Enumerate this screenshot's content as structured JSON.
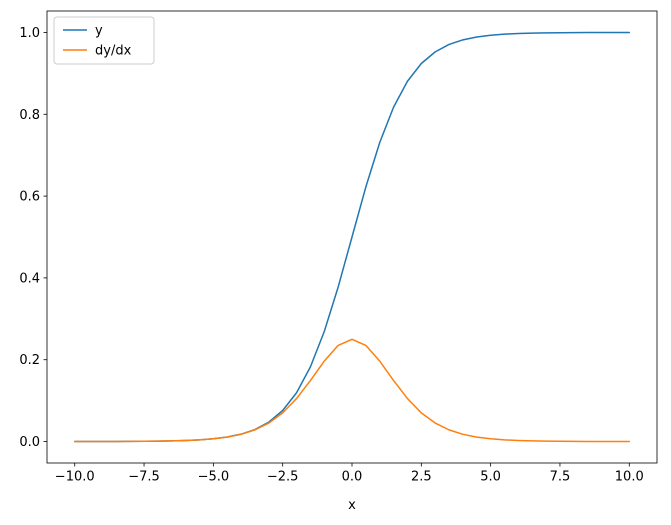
{
  "chart_data": {
    "type": "line",
    "title": "",
    "xlabel": "x",
    "ylabel": "",
    "grid": false,
    "xlim": [
      -11,
      11
    ],
    "ylim": [
      -0.0525,
      1.0525
    ],
    "x_ticks": [
      -10.0,
      -7.5,
      -5.0,
      -2.5,
      0.0,
      2.5,
      5.0,
      7.5,
      10.0
    ],
    "x_tick_labels": [
      "−10.0",
      "−7.5",
      "−5.0",
      "−2.5",
      "0.0",
      "2.5",
      "5.0",
      "7.5",
      "10.0"
    ],
    "y_ticks": [
      0.0,
      0.2,
      0.4,
      0.6,
      0.8,
      1.0
    ],
    "y_tick_labels": [
      "0.0",
      "0.2",
      "0.4",
      "0.6",
      "0.8",
      "1.0"
    ],
    "legend": {
      "position": "upper left",
      "entries": [
        "y",
        "dy/dx"
      ]
    },
    "x": [
      -10,
      -9.5,
      -9,
      -8.5,
      -8,
      -7.5,
      -7,
      -6.5,
      -6,
      -5.5,
      -5,
      -4.5,
      -4,
      -3.5,
      -3,
      -2.5,
      -2,
      -1.5,
      -1,
      -0.5,
      0,
      0.5,
      1,
      1.5,
      2,
      2.5,
      3,
      3.5,
      4,
      4.5,
      5,
      5.5,
      6,
      6.5,
      7,
      7.5,
      8,
      8.5,
      9,
      9.5,
      10
    ],
    "series": [
      {
        "name": "y",
        "color": "#1f77b4",
        "values": [
          5e-05,
          7e-05,
          0.00012,
          0.0002,
          0.00034,
          0.00055,
          0.00091,
          0.0015,
          0.00247,
          0.00407,
          0.00669,
          0.01099,
          0.01799,
          0.02931,
          0.04743,
          0.07586,
          0.1192,
          0.18243,
          0.26894,
          0.37754,
          0.5,
          0.62246,
          0.73106,
          0.81757,
          0.8808,
          0.92414,
          0.95257,
          0.97069,
          0.98201,
          0.98901,
          0.99331,
          0.99593,
          0.99753,
          0.9985,
          0.99909,
          0.99945,
          0.99966,
          0.9998,
          0.99988,
          0.99993,
          0.99995
        ]
      },
      {
        "name": "dy/dx",
        "color": "#ff7f0e",
        "values": [
          5e-05,
          7e-05,
          0.00012,
          0.0002,
          0.00034,
          0.00055,
          0.00091,
          0.0015,
          0.00246,
          0.00405,
          0.00665,
          0.01087,
          0.01766,
          0.02845,
          0.04518,
          0.0701,
          0.10499,
          0.14915,
          0.19661,
          0.235,
          0.25,
          0.235,
          0.19661,
          0.14915,
          0.10499,
          0.0701,
          0.04518,
          0.02845,
          0.01766,
          0.01087,
          0.00665,
          0.00405,
          0.00246,
          0.0015,
          0.00091,
          0.00055,
          0.00034,
          0.0002,
          0.00012,
          7e-05,
          5e-05
        ]
      }
    ]
  },
  "frame": {
    "spine_color": "#000000",
    "legend_frame_color": "#cccccc",
    "background": "#ffffff"
  }
}
